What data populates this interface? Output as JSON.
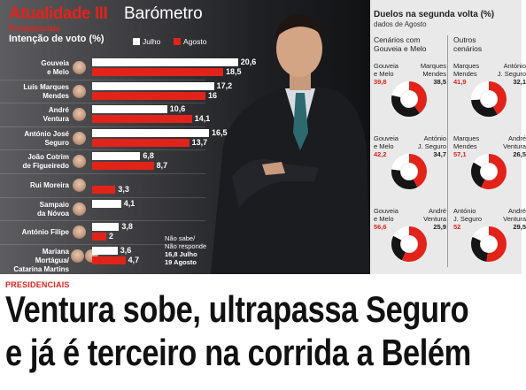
{
  "section": "Atualidade III",
  "section_title": "Barómetro",
  "kicker_small": "Presidenciais",
  "chart_title": "Intenção de voto (%)",
  "legend": [
    "Julho",
    "Agosto"
  ],
  "colors": {
    "julho": "#ffffff",
    "agosto": "#e2231a",
    "accent": "#e2231a"
  },
  "chart_data": {
    "type": "bar",
    "title": "Intenção de voto (%)",
    "categories": [
      "Gouveia e Melo",
      "Luís Marques Mendes",
      "André Ventura",
      "António José Seguro",
      "João Cotrim de Figueiredo",
      "Rui Moreira",
      "Sampaio da Nóvoa",
      "António Filipe",
      "Mariana Mortágua/ Catarina Martins"
    ],
    "series": [
      {
        "name": "Julho",
        "values": [
          20.6,
          17.2,
          10.6,
          16.5,
          6.8,
          null,
          4.1,
          3.8,
          3.6
        ]
      },
      {
        "name": "Agosto",
        "values": [
          18.5,
          16,
          14.1,
          13.7,
          8.7,
          3.3,
          null,
          2,
          4.7
        ]
      }
    ]
  },
  "candidates": [
    {
      "line1": "Gouveia",
      "line2": "e Melo",
      "julho": "20,6",
      "agosto": "18,5"
    },
    {
      "line1": "Luís Marques",
      "line2": "Mendes",
      "julho": "17,2",
      "agosto": "16"
    },
    {
      "line1": "André",
      "line2": "Ventura",
      "julho": "10,6",
      "agosto": "14,1"
    },
    {
      "line1": "António José",
      "line2": "Seguro",
      "julho": "16,5",
      "agosto": "13,7"
    },
    {
      "line1": "João Cotrim",
      "line2": "de Figueiredo",
      "julho": "6,8",
      "agosto": "8,7"
    },
    {
      "line1": "Rui Moreira",
      "line2": "",
      "julho": "",
      "agosto": "3,3"
    },
    {
      "line1": "Sampaio",
      "line2": "da Nóvoa",
      "julho": "4,1",
      "agosto": ""
    },
    {
      "line1": "António Filipe",
      "line2": "",
      "julho": "3,8",
      "agosto": "2"
    },
    {
      "line1": "Mariana Mortágua/",
      "line2": "Catarina Martins",
      "julho": "3,6",
      "agosto": "4,7"
    }
  ],
  "nao_sabe": {
    "line1": "Não sabe/",
    "line2": "Não responde",
    "line3": "16,8 Julho",
    "line4": "19 Agosto"
  },
  "duelos": {
    "title": "Duelos na segunda volta (%)",
    "subtitle": "dados de Agosto",
    "col1": {
      "line1": "Cenários com",
      "line2": "Gouveia e Melo"
    },
    "col2": {
      "line1": "Outros",
      "line2": "cenários"
    },
    "pairs": [
      {
        "left1": "Gouveia",
        "left2": "e Melo",
        "left_val": "39,8",
        "right1": "Marques",
        "right2": "Mendes",
        "right_val": "38,5",
        "left": 39.8,
        "right": 38.5
      },
      {
        "left1": "Marques",
        "left2": "Mendes",
        "left_val": "41,9",
        "right1": "António",
        "right2": "J. Seguro",
        "right_val": "32,1",
        "left": 41.9,
        "right": 32.1
      },
      {
        "left1": "Gouveia",
        "left2": "e Melo",
        "left_val": "42,2",
        "right1": "António",
        "right2": "J. Seguro",
        "right_val": "34,7",
        "left": 42.2,
        "right": 34.7
      },
      {
        "left1": "Marques",
        "left2": "Mendes",
        "left_val": "57,1",
        "right1": "André",
        "right2": "Ventura",
        "right_val": "26,5",
        "left": 57.1,
        "right": 26.5
      },
      {
        "left1": "Gouveia",
        "left2": "e Melo",
        "left_val": "56,6",
        "right1": "André",
        "right2": "Ventura",
        "right_val": "25,9",
        "left": 56.6,
        "right": 25.9
      },
      {
        "left1": "António",
        "left2": "J. Seguro",
        "left_val": "52",
        "right1": "André",
        "right2": "Ventura",
        "right_val": "29,5",
        "left": 52,
        "right": 29.5
      }
    ]
  },
  "kicker": "PRESIDENCIAIS",
  "headline": {
    "line1": "Ventura sobe, ultrapassa Seguro",
    "line2": "e já é terceiro na corrida a Belém"
  }
}
